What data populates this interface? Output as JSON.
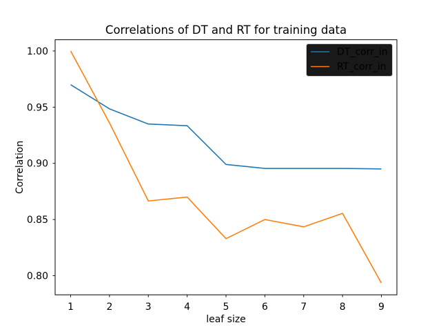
{
  "chart_data": {
    "type": "line",
    "title": "Correlations of DT and RT for training data",
    "xlabel": "leaf size",
    "ylabel": "Correlation",
    "x": [
      1,
      2,
      3,
      4,
      5,
      6,
      7,
      8,
      9
    ],
    "series": [
      {
        "name": "DT_corr_in",
        "color": "#1f77b4",
        "values": [
          0.97,
          0.9485,
          0.935,
          0.9335,
          0.899,
          0.8955,
          0.8955,
          0.8955,
          0.895
        ]
      },
      {
        "name": "RT_corr_in",
        "color": "#ff7f0e",
        "values": [
          1.0,
          0.936,
          0.8665,
          0.87,
          0.833,
          0.85,
          0.8435,
          0.8555,
          0.7935
        ]
      }
    ],
    "xticks": [
      1,
      2,
      3,
      4,
      5,
      6,
      7,
      8,
      9
    ],
    "xtick_labels": [
      "1",
      "2",
      "3",
      "4",
      "5",
      "6",
      "7",
      "8",
      "9"
    ],
    "yticks": [
      0.8,
      0.85,
      0.9,
      0.95,
      1.0
    ],
    "ytick_labels": [
      "0.80",
      "0.85",
      "0.90",
      "0.95",
      "1.00"
    ],
    "xlim": [
      0.6,
      9.4
    ],
    "ylim": [
      0.783,
      1.01
    ],
    "grid": false,
    "legend": {
      "position": "upper right",
      "entries": [
        "DT_corr_in",
        "RT_corr_in"
      ]
    }
  },
  "colors": {
    "figure_background": "#ffffff",
    "spine": "#000000",
    "tick": "#000000",
    "legend_border": "#cccccc",
    "legend_background": "#ffffff"
  }
}
